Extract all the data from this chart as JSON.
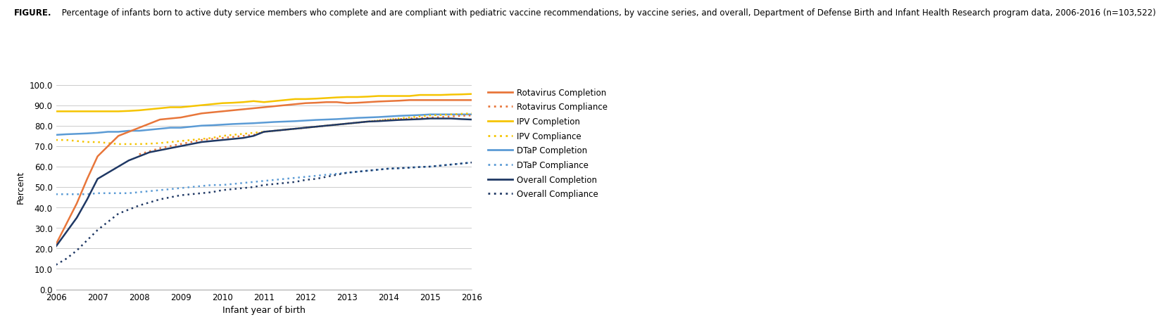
{
  "years": [
    2006,
    2006.25,
    2006.5,
    2006.75,
    2007,
    2007.25,
    2007.5,
    2007.75,
    2008,
    2008.25,
    2008.5,
    2008.75,
    2009,
    2009.25,
    2009.5,
    2009.75,
    2010,
    2010.25,
    2010.5,
    2010.75,
    2011,
    2011.25,
    2011.5,
    2011.75,
    2012,
    2012.25,
    2012.5,
    2012.75,
    2013,
    2013.25,
    2013.5,
    2013.75,
    2014,
    2014.25,
    2014.5,
    2014.75,
    2015,
    2015.25,
    2015.5,
    2015.75,
    2016
  ],
  "rotavirus_completion": [
    22,
    32,
    42,
    54,
    65,
    70,
    75,
    77,
    79,
    81,
    83,
    83.5,
    84,
    85,
    86,
    86.5,
    87,
    87.5,
    88,
    88.5,
    89,
    89.5,
    90,
    90.5,
    91,
    91.2,
    91.5,
    91.5,
    91,
    91.2,
    91.5,
    91.8,
    92,
    92.2,
    92.5,
    92.5,
    92.5,
    92.5,
    92.5,
    92.5,
    92.5
  ],
  "rotavirus_compliance": [
    null,
    null,
    null,
    null,
    null,
    null,
    null,
    null,
    66,
    67.5,
    69,
    70,
    71,
    72,
    73,
    73.5,
    74,
    74.5,
    75,
    75.5,
    77,
    77.5,
    78,
    78.5,
    79,
    79.5,
    80,
    80.5,
    81,
    81.5,
    82,
    82.5,
    83,
    83.2,
    83.5,
    83.8,
    84,
    84.2,
    84.5,
    84.8,
    85
  ],
  "ipv_completion": [
    87,
    87,
    87,
    87,
    87,
    87,
    87,
    87.2,
    87.5,
    88,
    88.5,
    89,
    89,
    89.5,
    90,
    90.5,
    91,
    91.2,
    91.5,
    92,
    91.5,
    92,
    92.5,
    93,
    93,
    93.2,
    93.5,
    93.8,
    94,
    94,
    94.2,
    94.5,
    94.5,
    94.5,
    94.5,
    95,
    95,
    95,
    95.2,
    95.3,
    95.5
  ],
  "ipv_compliance": [
    73,
    73,
    72.5,
    72,
    72,
    71.5,
    71,
    71,
    71,
    71.2,
    71.5,
    72,
    72.5,
    73,
    73.5,
    74,
    75,
    75.5,
    76,
    76.5,
    77,
    77.5,
    78,
    78.5,
    79,
    79.5,
    80,
    80.5,
    81,
    81.5,
    82,
    82.5,
    83,
    83.5,
    84,
    84.5,
    85,
    85.2,
    85.5,
    85.8,
    86
  ],
  "dtap_completion": [
    75.5,
    75.8,
    76,
    76.2,
    76.5,
    77,
    77,
    77.5,
    77.5,
    78,
    78.5,
    79,
    79,
    79.5,
    80,
    80.2,
    80.5,
    80.8,
    81,
    81.2,
    81.5,
    81.8,
    82,
    82.2,
    82.5,
    82.8,
    83,
    83.2,
    83.5,
    83.8,
    84,
    84.2,
    84.5,
    84.8,
    85,
    85.2,
    85.5,
    85.5,
    85.5,
    85.5,
    85.5
  ],
  "dtap_compliance": [
    46.5,
    46.5,
    46.5,
    46.5,
    47,
    47,
    47,
    47,
    47.5,
    48,
    48.5,
    49,
    49.5,
    50,
    50.5,
    51,
    51,
    51.5,
    52,
    52.5,
    53,
    53.5,
    54,
    54.5,
    55,
    55.5,
    56,
    56.5,
    57,
    57.5,
    58,
    58.5,
    59,
    59.2,
    59.5,
    59.8,
    60,
    60.5,
    61,
    61.5,
    62
  ],
  "overall_completion": [
    21,
    28,
    35,
    44,
    54,
    57,
    60,
    63,
    65,
    67,
    68,
    69,
    70,
    71,
    72,
    72.5,
    73,
    73.5,
    74,
    75,
    77,
    77.5,
    78,
    78.5,
    79,
    79.5,
    80,
    80.5,
    81,
    81.5,
    82,
    82.2,
    82.5,
    82.8,
    83,
    83.2,
    83.5,
    83.5,
    83.5,
    83.2,
    83
  ],
  "overall_compliance": [
    12,
    15,
    19,
    24,
    29,
    33,
    37,
    39,
    41,
    42.5,
    44,
    45,
    46,
    46.5,
    47,
    47.5,
    48.5,
    49,
    49.5,
    50,
    51,
    51.5,
    52,
    52.5,
    53.5,
    54,
    55,
    56,
    57,
    57.5,
    58,
    58.5,
    59,
    59.2,
    59.5,
    59.8,
    60,
    60.5,
    61,
    61.5,
    62
  ],
  "title_bold": "FIGURE.",
  "title_rest": " Percentage of infants born to active duty service members who complete and are compliant with pediatric vaccine recommendations, by vaccine series, and overall, Department of Defense Birth and Infant Health Research program data, 2006-2016 (n=103,522)",
  "xlabel": "Infant year of birth",
  "ylabel": "Percent",
  "yticks": [
    0.0,
    10.0,
    20.0,
    30.0,
    40.0,
    50.0,
    60.0,
    70.0,
    80.0,
    90.0,
    100.0
  ],
  "xticks": [
    2006,
    2007,
    2008,
    2009,
    2010,
    2011,
    2012,
    2013,
    2014,
    2015,
    2016
  ],
  "color_orange": "#E8763A",
  "color_yellow": "#F5C400",
  "color_light_blue": "#5B9BD5",
  "color_dark_navy": "#1F3864",
  "grid_color": "#cccccc",
  "legend_entries": [
    "Rotavirus Completion",
    "Rotavirus Compliance",
    "IPV Completion",
    "IPV Compliance",
    "DTaP Completion",
    "DTaP Compliance",
    "Overall Completion",
    "Overall Compliance"
  ]
}
